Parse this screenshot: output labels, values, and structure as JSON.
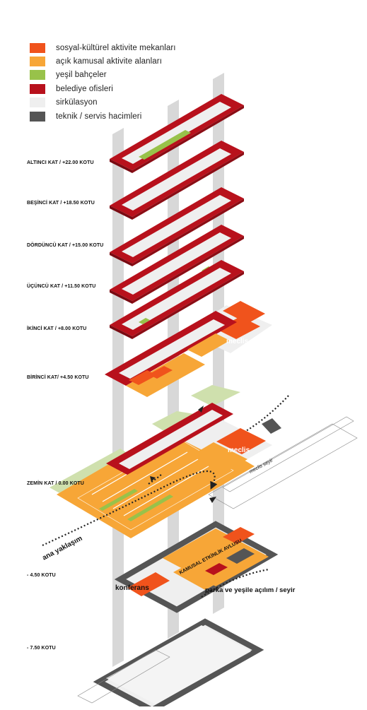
{
  "colors": {
    "sosyal": "#f0531c",
    "acik": "#f7a637",
    "yesil": "#98c24a",
    "belediye": "#b8111c",
    "sirkulasyon": "#efefef",
    "teknik": "#555555",
    "column": "#d8d8d8",
    "light_green": "#cfe0ad"
  },
  "legend": [
    {
      "label": "sosyal-kültürel aktivite mekanları",
      "color": "#f0531c"
    },
    {
      "label": "açık kamusal aktivite alanları",
      "color": "#f7a637"
    },
    {
      "label": "yeşil bahçeler",
      "color": "#98c24a"
    },
    {
      "label": "belediye ofisleri",
      "color": "#b8111c"
    },
    {
      "label": "sirkülasyon",
      "color": "#efefef"
    },
    {
      "label": "teknik / servis hacimleri",
      "color": "#555555"
    }
  ],
  "levels": [
    {
      "label": "ALTINCI KAT / +22.00 KOTU"
    },
    {
      "label": "BEŞİNCİ KAT / +18.50 KOTU"
    },
    {
      "label": "DÖRDÜNCÜ KAT / +15.00 KOTU"
    },
    {
      "label": "ÜÇÜNCÜ KAT / +11.50 KOTU"
    },
    {
      "label": "İKİNCİ KAT / +8.00 KOTU"
    },
    {
      "label": "BİRİNCİ KAT/ +4.50 KOTU"
    },
    {
      "label": "ZEMİN KAT / 0.00 KOTU"
    },
    {
      "label": "- 4.50 KOTU"
    },
    {
      "label": "- 7.50 KOTU"
    }
  ],
  "annotations": {
    "meclis_1": "meclis",
    "meclis_2": "meclis",
    "meclis_seyir": "meclis seyir",
    "ana_yaklasim": "ana yaklaşım",
    "kamusal_avlu": "KAMUSAL ETKİNLİK AVLUSU",
    "konferans": "konferans",
    "parka": "parka ve yeşile açılım / seyir"
  }
}
